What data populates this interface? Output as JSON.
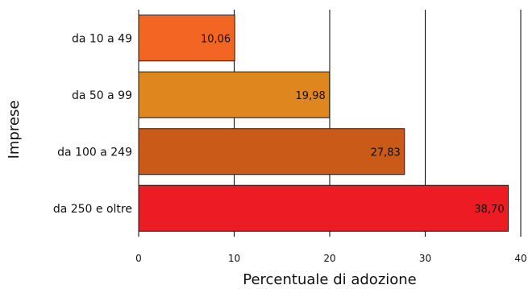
{
  "chart_data": {
    "type": "bar",
    "orientation": "horizontal",
    "categories": [
      "da 10 a 49",
      "da 50 a 99",
      "da 100 a 249",
      "da 250 e oltre"
    ],
    "values": [
      10.06,
      19.98,
      27.83,
      38.7
    ],
    "value_labels": [
      "10,06",
      "19,98",
      "27,83",
      "38,70"
    ],
    "bar_colors": [
      "#f26522",
      "#e0861e",
      "#c95a17",
      "#ed1c24"
    ],
    "xlabel": "Percentuale di adozione",
    "ylabel": "Imprese",
    "xlim": [
      0,
      40
    ],
    "xticks": [
      0,
      10,
      20,
      30,
      40
    ],
    "xtick_labels": [
      "0",
      "10",
      "20",
      "30",
      "40"
    ],
    "grid": "vertical",
    "legend": "none"
  }
}
